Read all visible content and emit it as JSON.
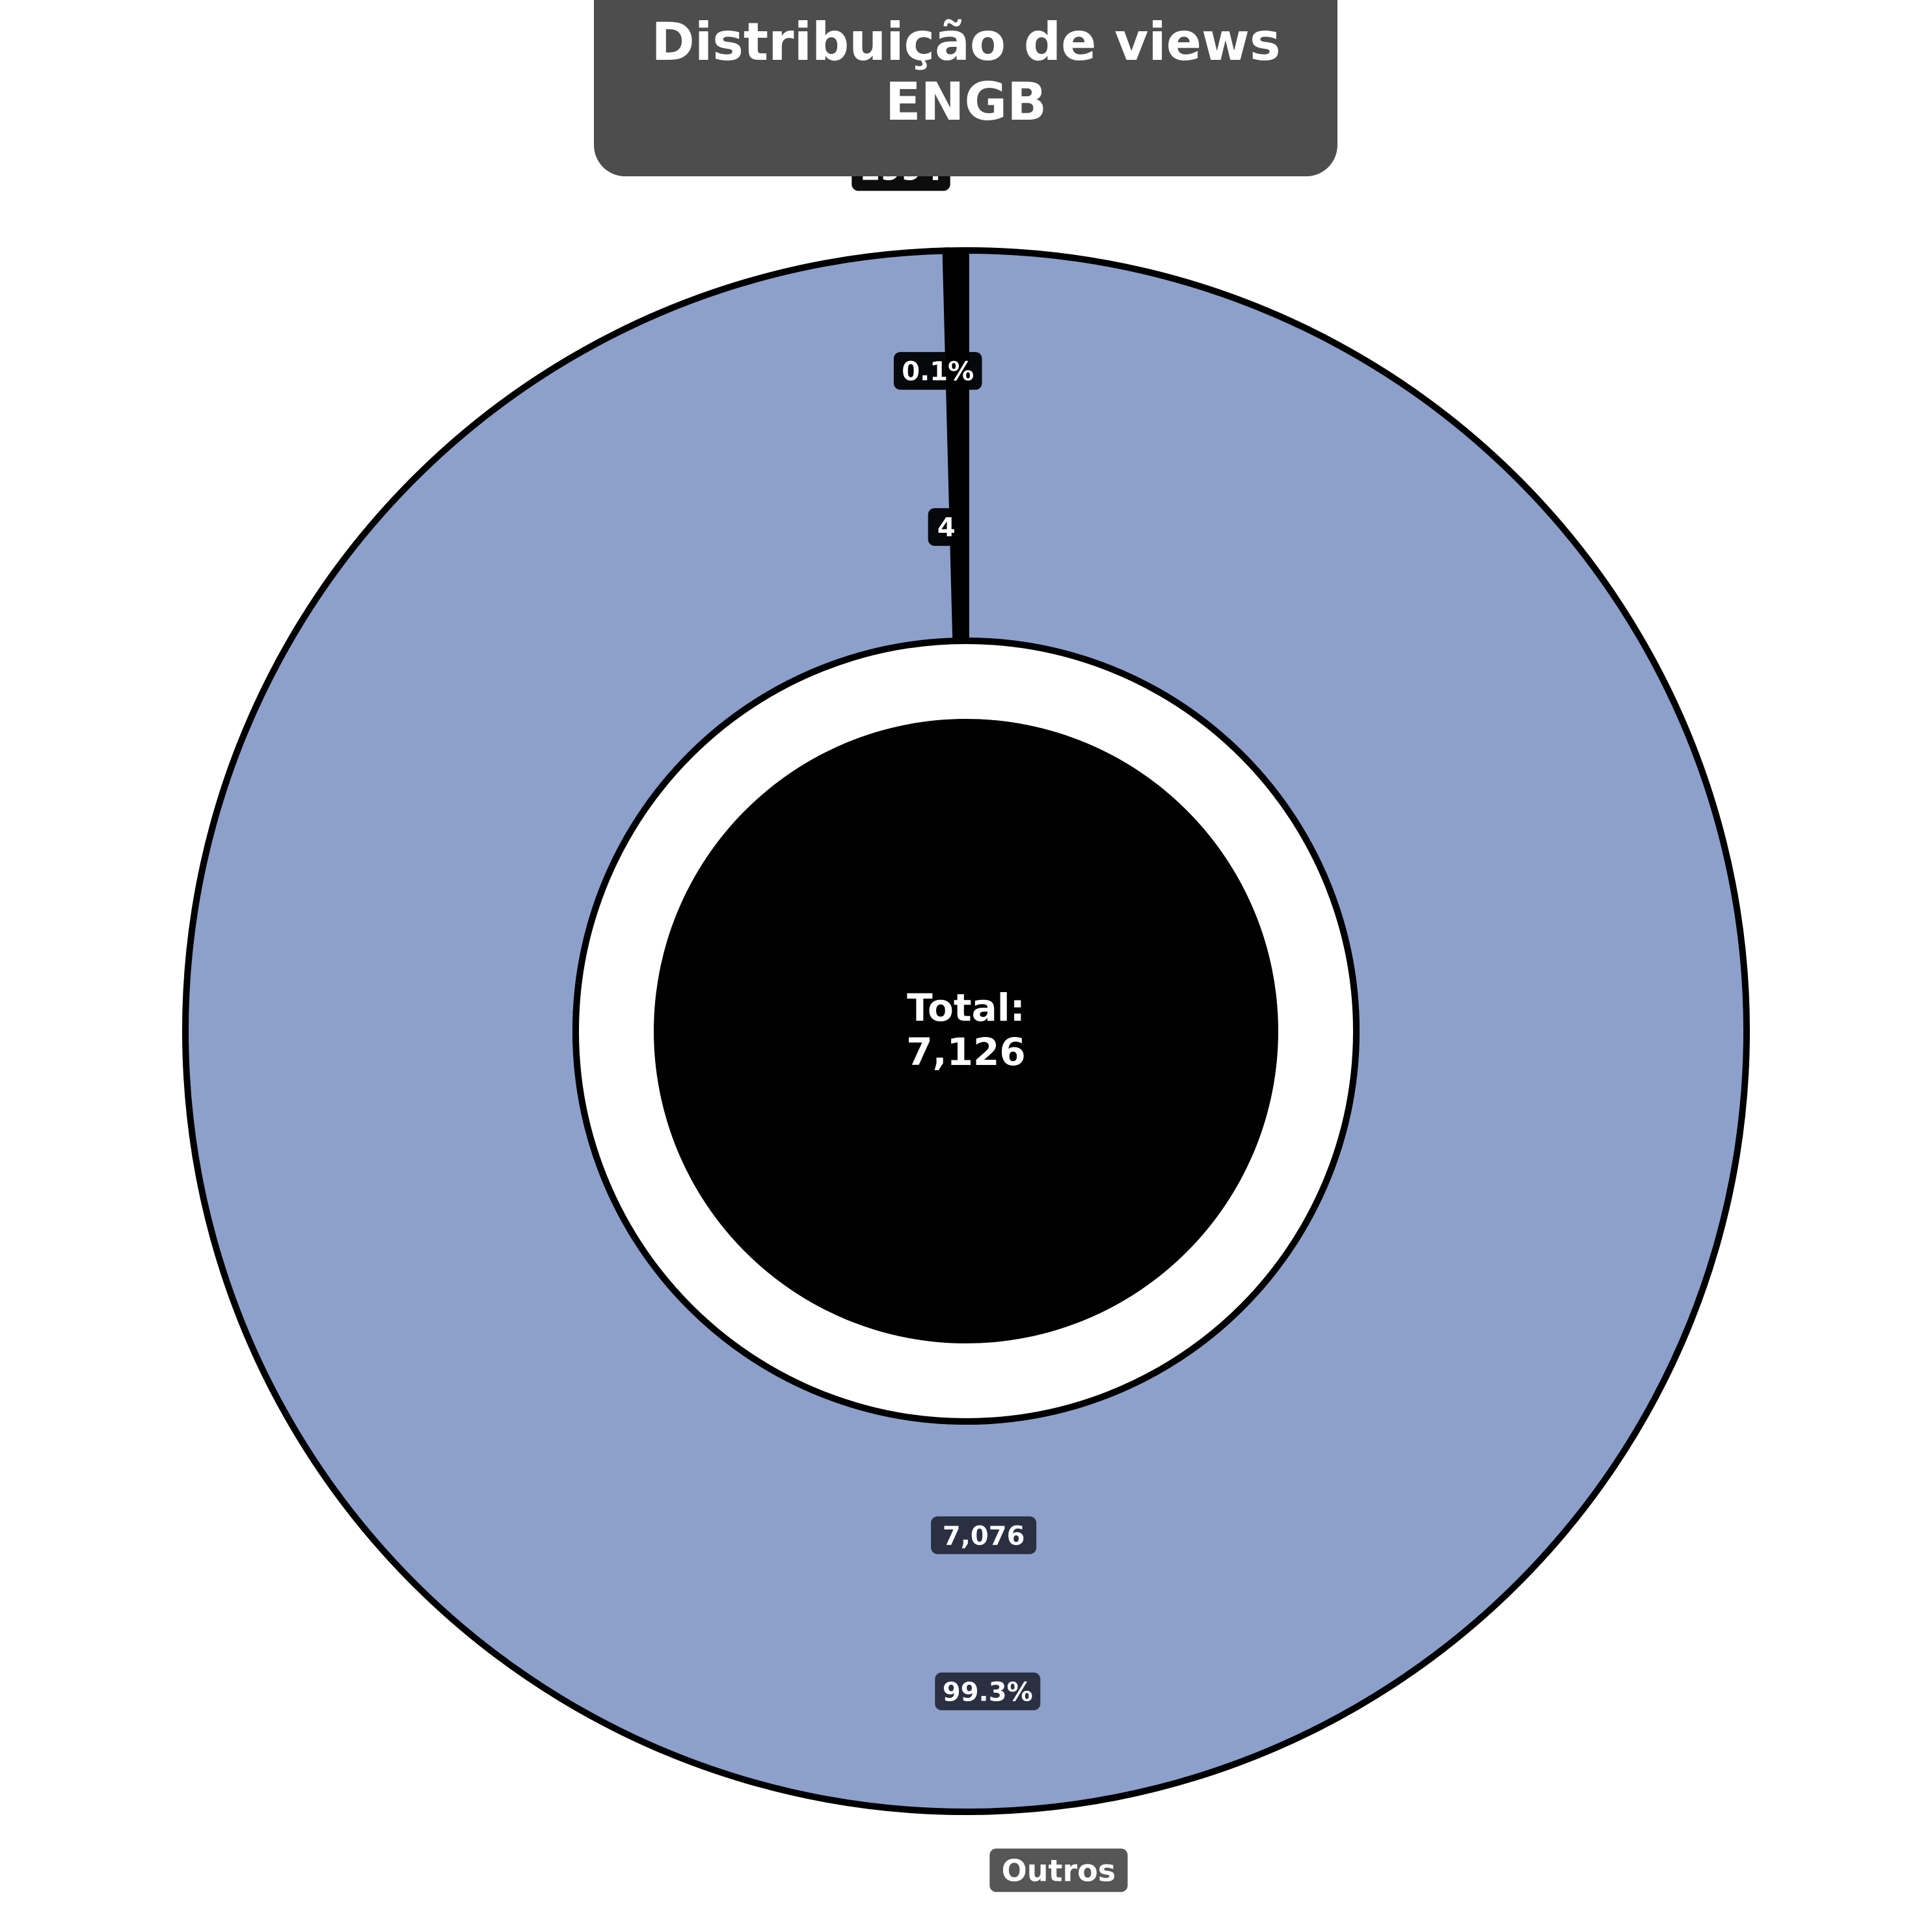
{
  "chart_data": {
    "type": "pie",
    "title": "Distribuição de views\nENGB",
    "total_label": "Total:",
    "total_value": "7,126",
    "slices": [
      {
        "label": "Outros",
        "value": 7076,
        "value_label": "7,076",
        "percent_label": "99.3%",
        "color": "#8da0cb"
      },
      {
        "label": "1994",
        "value": 4,
        "value_label": "4",
        "percent_label": "0.1%",
        "color": "#000000"
      }
    ]
  }
}
